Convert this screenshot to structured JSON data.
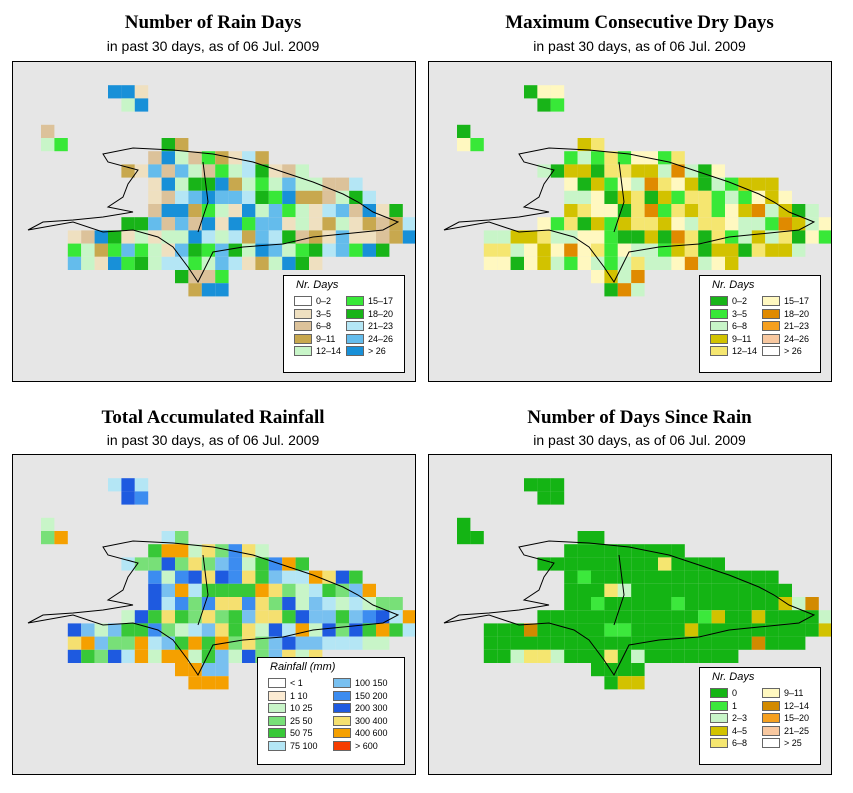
{
  "panels": [
    {
      "id": "rain-days",
      "title": "Number of Rain Days",
      "subtitle": "in past 30 days, as of  06 Jul. 2009",
      "legend": {
        "title": "Nr. Days",
        "items": [
          {
            "label": "0–2",
            "color": "#ffffff"
          },
          {
            "label": "3–5",
            "color": "#efe0c0"
          },
          {
            "label": "6–8",
            "color": "#dcc29a"
          },
          {
            "label": "9–11",
            "color": "#c8a84e"
          },
          {
            "label": "12–14",
            "color": "#c8f5c8"
          },
          {
            "label": "15–17",
            "color": "#38e838"
          },
          {
            "label": "18–20",
            "color": "#18b418"
          },
          {
            "label": "21–23",
            "color": "#b4e6f5"
          },
          {
            "label": "24–26",
            "color": "#64bcec"
          },
          {
            "label": "> 26",
            "color": "#1890d8"
          }
        ]
      },
      "palette": [
        "#efe0c0",
        "#dcc29a",
        "#c8a84e",
        "#c8f5c8",
        "#38e838",
        "#18b418",
        "#b4e6f5",
        "#64bcec",
        "#1890d8"
      ]
    },
    {
      "id": "max-dry-days",
      "title": "Maximum Consecutive Dry Days",
      "subtitle": "in past 30 days, as of  06 Jul. 2009",
      "legend": {
        "title": "Nr. Days",
        "items": [
          {
            "label": "0–2",
            "color": "#18b418"
          },
          {
            "label": "3–5",
            "color": "#38e838"
          },
          {
            "label": "6–8",
            "color": "#c8f5c8"
          },
          {
            "label": "9–11",
            "color": "#d2c200"
          },
          {
            "label": "12–14",
            "color": "#f5e670"
          },
          {
            "label": "15–17",
            "color": "#fff8c0"
          },
          {
            "label": "18–20",
            "color": "#e08a00"
          },
          {
            "label": "21–23",
            "color": "#f5a020"
          },
          {
            "label": "24–26",
            "color": "#f8c8a0"
          },
          {
            "label": "> 26",
            "color": "#ffffff"
          }
        ]
      },
      "palette": [
        "#18b418",
        "#38e838",
        "#c8f5c8",
        "#d2c200",
        "#f5e670",
        "#fff8c0",
        "#e08a00"
      ]
    },
    {
      "id": "total-rainfall",
      "title": "Total Accumulated Rainfall",
      "subtitle": "in past 30 days, as of  06 Jul. 2009",
      "legend": {
        "title": "Rainfall (mm)",
        "items": [
          {
            "label": "< 1",
            "color": "#ffffff"
          },
          {
            "label": "1    10",
            "color": "#fcebd2"
          },
          {
            "label": "10    25",
            "color": "#c8f5c8"
          },
          {
            "label": "25    50",
            "color": "#78e078"
          },
          {
            "label": "50    75",
            "color": "#38c838"
          },
          {
            "label": "75    100",
            "color": "#b4e6f5"
          },
          {
            "label": "100  150",
            "color": "#78c0f0"
          },
          {
            "label": "150  200",
            "color": "#3c8cf0"
          },
          {
            "label": "200  300",
            "color": "#1e5ae0"
          },
          {
            "label": "300  400",
            "color": "#f5e070"
          },
          {
            "label": "400  600",
            "color": "#f5a000"
          },
          {
            "label": "> 600",
            "color": "#f53c00"
          }
        ]
      },
      "palette": [
        "#c8f5c8",
        "#78e078",
        "#38c838",
        "#b4e6f5",
        "#78c0f0",
        "#3c8cf0",
        "#1e5ae0",
        "#f5e070",
        "#f5a000"
      ]
    },
    {
      "id": "days-since-rain",
      "title": "Number of Days Since Rain",
      "subtitle": "in past 30 days, as of  06 Jul. 2009",
      "legend": {
        "title": "Nr. Days",
        "items": [
          {
            "label": "0",
            "color": "#14b414"
          },
          {
            "label": "1",
            "color": "#3ce83c"
          },
          {
            "label": "2–3",
            "color": "#c8f5c8"
          },
          {
            "label": "4–5",
            "color": "#d2c200"
          },
          {
            "label": "6–8",
            "color": "#f5e670"
          },
          {
            "label": "9–11",
            "color": "#fff8c0"
          },
          {
            "label": "12–14",
            "color": "#d28a00"
          },
          {
            "label": "15–20",
            "color": "#f5a020"
          },
          {
            "label": "21–25",
            "color": "#f8c8a0"
          },
          {
            "label": "> 25",
            "color": "#ffffff"
          }
        ]
      },
      "palette": [
        "#14b414",
        "#3ce83c",
        "#c8f5c8",
        "#d2c200",
        "#f5e670",
        "#d28a00"
      ]
    }
  ]
}
